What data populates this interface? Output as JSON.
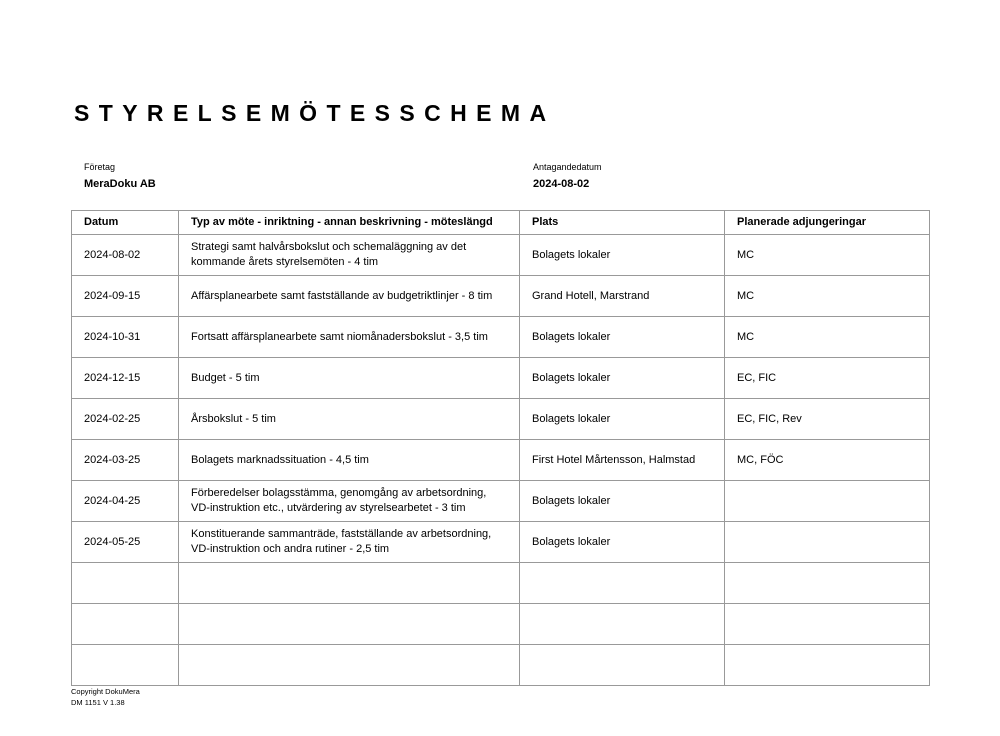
{
  "title": "STYRELSEMÖTESSCHEMA",
  "company": {
    "label": "Företag",
    "value": "MeraDoku AB"
  },
  "adoption_date": {
    "label": "Antagandedatum",
    "value": "2024-08-02"
  },
  "table": {
    "headers": [
      "Datum",
      "Typ av möte - inriktning - annan beskrivning - möteslängd",
      "Plats",
      "Planerade adjungeringar"
    ],
    "rows": [
      [
        "2024-08-02",
        "Strategi samt halvårsbokslut och schemaläggning av det kommande årets styrelsemöten - 4 tim",
        "Bolagets lokaler",
        "MC"
      ],
      [
        "2024-09-15",
        "Affärsplanearbete samt  fastställande av budgetriktlinjer - 8 tim",
        "Grand Hotell, Marstrand",
        "MC"
      ],
      [
        "2024-10-31",
        "Fortsatt affärsplanearbete samt niomånadersbokslut - 3,5 tim",
        "Bolagets lokaler",
        "MC"
      ],
      [
        "2024-12-15",
        "Budget - 5 tim",
        "Bolagets lokaler",
        "EC, FIC"
      ],
      [
        "2024-02-25",
        "Årsbokslut - 5 tim",
        "Bolagets lokaler",
        "EC, FIC, Rev"
      ],
      [
        "2024-03-25",
        "Bolagets marknadssituation - 4,5 tim",
        "First Hotel Mårtensson, Halmstad",
        "MC, FÖC"
      ],
      [
        "2024-04-25",
        "Förberedelser bolagsstämma, genomgång av arbetsordning, VD-instruktion etc., utvärdering av styrelsearbetet - 3 tim",
        "Bolagets lokaler",
        ""
      ],
      [
        "2024-05-25",
        "Konstituerande sammanträde, fastställande av arbetsordning, VD-instruktion och andra rutiner - 2,5 tim",
        "Bolagets lokaler",
        ""
      ],
      [
        "",
        "",
        "",
        ""
      ],
      [
        "",
        "",
        "",
        ""
      ],
      [
        "",
        "",
        "",
        ""
      ]
    ]
  },
  "footer": {
    "copyright": "Copyright DokuMera",
    "version": "DM 1151  V 1.38"
  }
}
